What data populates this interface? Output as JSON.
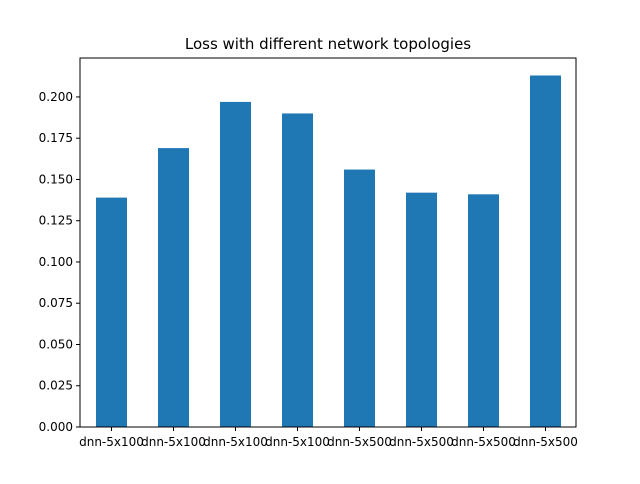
{
  "chart_data": {
    "type": "bar",
    "title": "Loss with different network topologies",
    "xlabel": "",
    "ylabel": "",
    "categories": [
      "dnn-5x100",
      "dnn-5x100",
      "dnn-5x100",
      "dnn-5x100",
      "dnn-5x500",
      "dnn-5x500",
      "dnn-5x500",
      "dnn-5x500"
    ],
    "values": [
      0.139,
      0.169,
      0.197,
      0.19,
      0.156,
      0.142,
      0.141,
      0.213
    ],
    "ylim": [
      0,
      0.2236
    ],
    "yticks": [
      "0.000",
      "0.025",
      "0.050",
      "0.075",
      "0.100",
      "0.125",
      "0.150",
      "0.175",
      "0.200"
    ],
    "grid": false,
    "legend": "none",
    "bar_color": "#1f77b4"
  }
}
